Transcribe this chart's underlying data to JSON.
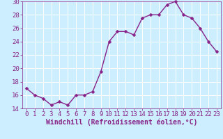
{
  "x": [
    0,
    1,
    2,
    3,
    4,
    5,
    6,
    7,
    8,
    9,
    10,
    11,
    12,
    13,
    14,
    15,
    16,
    17,
    18,
    19,
    20,
    21,
    22,
    23
  ],
  "y": [
    17,
    16,
    15.5,
    14.5,
    15,
    14.5,
    16,
    16,
    16.5,
    19.5,
    24,
    25.5,
    25.5,
    25,
    27.5,
    28,
    28,
    29.5,
    30,
    28,
    27.5,
    26,
    24,
    22.5
  ],
  "line_color": "#882288",
  "marker_color": "#882288",
  "bg_color": "#cceeff",
  "grid_color": "#aaddcc",
  "xlabel": "Windchill (Refroidissement éolien,°C)",
  "xlabel_color": "#882288",
  "ylim": [
    14,
    30
  ],
  "xlim": [
    -0.5,
    23.5
  ],
  "yticks": [
    14,
    16,
    18,
    20,
    22,
    24,
    26,
    28,
    30
  ],
  "xticks": [
    0,
    1,
    2,
    3,
    4,
    5,
    6,
    7,
    8,
    9,
    10,
    11,
    12,
    13,
    14,
    15,
    16,
    17,
    18,
    19,
    20,
    21,
    22,
    23
  ],
  "tick_label_color": "#882288",
  "font_size": 6.5,
  "marker_size": 2.5,
  "line_width": 1.0
}
